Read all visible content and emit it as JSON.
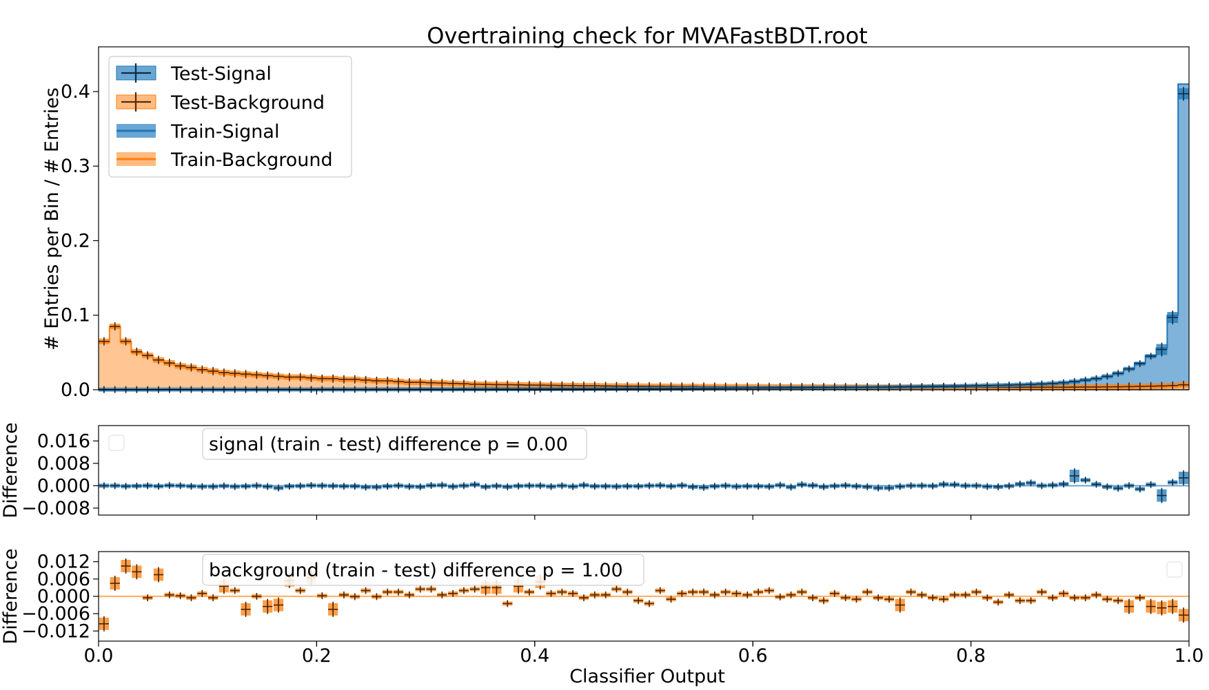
{
  "colors": {
    "signal": "#1f77b4",
    "signal_fill": "#6aa6d4",
    "background": "#ff7f0e",
    "background_fill": "#ffbb80",
    "errbar": "#222222"
  },
  "chart_data": [
    {
      "type": "histogram",
      "title": "Overtraining check for MVAFastBDT.root",
      "ylabel": "# Entries per Bin / # Entries",
      "xlim": [
        0.0,
        1.0
      ],
      "ylim": [
        0.0,
        0.46
      ],
      "yticks": [
        "0.0",
        "0.1",
        "0.2",
        "0.3",
        "0.4"
      ],
      "ytick_values": [
        0.0,
        0.1,
        0.2,
        0.3,
        0.4
      ],
      "bins": 100,
      "legend_position": "top-left",
      "legend": [
        "Test-Signal",
        "Test-Background",
        "Train-Signal",
        "Train-Background"
      ],
      "series": [
        {
          "name": "Train-Background",
          "values": [
            0.064,
            0.084,
            0.064,
            0.05,
            0.046,
            0.04,
            0.035,
            0.032,
            0.029,
            0.027,
            0.025,
            0.023,
            0.021,
            0.021,
            0.02,
            0.019,
            0.018,
            0.017,
            0.017,
            0.016,
            0.016,
            0.015,
            0.014,
            0.014,
            0.013,
            0.013,
            0.012,
            0.011,
            0.01,
            0.01,
            0.0095,
            0.009,
            0.0085,
            0.008,
            0.0075,
            0.0072,
            0.007,
            0.0068,
            0.0066,
            0.0064,
            0.0062,
            0.006,
            0.0058,
            0.0056,
            0.0055,
            0.0054,
            0.0052,
            0.005,
            0.0049,
            0.0048,
            0.0047,
            0.0046,
            0.0045,
            0.0044,
            0.0044,
            0.0043,
            0.0042,
            0.0041,
            0.0041,
            0.004,
            0.004,
            0.0039,
            0.0039,
            0.0038,
            0.0038,
            0.0037,
            0.0037,
            0.0036,
            0.0036,
            0.0035,
            0.0035,
            0.0035,
            0.0034,
            0.0034,
            0.0034,
            0.0033,
            0.0033,
            0.0033,
            0.0033,
            0.0032,
            0.0032,
            0.0032,
            0.0032,
            0.0032,
            0.0032,
            0.0033,
            0.0033,
            0.0034,
            0.0034,
            0.0035,
            0.0036,
            0.0037,
            0.0038,
            0.004,
            0.0042,
            0.0044,
            0.0047,
            0.005,
            0.0055,
            0.006
          ]
        },
        {
          "name": "Train-Signal",
          "values": [
            0.0002,
            0.0002,
            0.0002,
            0.0002,
            0.0002,
            0.0002,
            0.0003,
            0.0003,
            0.0003,
            0.0003,
            0.0003,
            0.0003,
            0.0003,
            0.0003,
            0.0004,
            0.0004,
            0.0004,
            0.0004,
            0.0004,
            0.0004,
            0.0005,
            0.0005,
            0.0005,
            0.0005,
            0.0005,
            0.0006,
            0.0006,
            0.0006,
            0.0006,
            0.0007,
            0.0007,
            0.0007,
            0.0007,
            0.0008,
            0.0008,
            0.0008,
            0.0009,
            0.0009,
            0.0009,
            0.001,
            0.001,
            0.001,
            0.0011,
            0.0011,
            0.0012,
            0.0012,
            0.0013,
            0.0013,
            0.0014,
            0.0014,
            0.0015,
            0.0015,
            0.0016,
            0.0016,
            0.0017,
            0.0018,
            0.0019,
            0.002,
            0.0021,
            0.0022,
            0.0023,
            0.0024,
            0.0025,
            0.0026,
            0.0027,
            0.0028,
            0.0029,
            0.003,
            0.0031,
            0.0032,
            0.0033,
            0.0035,
            0.0037,
            0.0039,
            0.0041,
            0.0043,
            0.0045,
            0.0047,
            0.0049,
            0.0051,
            0.0054,
            0.0057,
            0.006,
            0.0063,
            0.0067,
            0.0072,
            0.0078,
            0.0085,
            0.0095,
            0.011,
            0.013,
            0.015,
            0.018,
            0.022,
            0.028,
            0.036,
            0.046,
            0.056,
            0.1,
            0.41
          ]
        },
        {
          "name": "Test-Background",
          "values": [
            0.065,
            0.085,
            0.065,
            0.051,
            0.046,
            0.04,
            0.036,
            0.032,
            0.03,
            0.027,
            0.025,
            0.023,
            0.022,
            0.021,
            0.02,
            0.019,
            0.018,
            0.017,
            0.017,
            0.016,
            0.015,
            0.015,
            0.014,
            0.014,
            0.013,
            0.012,
            0.012,
            0.011,
            0.01,
            0.01,
            0.0094,
            0.009,
            0.0085,
            0.0081,
            0.0074,
            0.0072,
            0.0069,
            0.0069,
            0.0066,
            0.0063,
            0.0062,
            0.006,
            0.0058,
            0.0057,
            0.0054,
            0.0055,
            0.0051,
            0.005,
            0.0049,
            0.0048,
            0.0047,
            0.0046,
            0.0045,
            0.0043,
            0.0044,
            0.0042,
            0.0042,
            0.0041,
            0.004,
            0.004,
            0.004,
            0.0039,
            0.0038,
            0.0038,
            0.0037,
            0.0037,
            0.0036,
            0.0036,
            0.0036,
            0.0035,
            0.0035,
            0.0034,
            0.0034,
            0.0034,
            0.0034,
            0.0033,
            0.0033,
            0.0033,
            0.0032,
            0.0032,
            0.0032,
            0.0032,
            0.0032,
            0.0032,
            0.0032,
            0.0033,
            0.0033,
            0.0034,
            0.0034,
            0.0035,
            0.0036,
            0.0037,
            0.0038,
            0.004,
            0.0042,
            0.0044,
            0.0048,
            0.0051,
            0.0056,
            0.0066
          ]
        },
        {
          "name": "Test-Signal",
          "values": [
            0.0002,
            0.0002,
            0.0002,
            0.0002,
            0.0002,
            0.0002,
            0.0003,
            0.0003,
            0.0003,
            0.0003,
            0.0003,
            0.0003,
            0.0003,
            0.0003,
            0.0004,
            0.0004,
            0.0004,
            0.0004,
            0.0004,
            0.0004,
            0.0005,
            0.0005,
            0.0005,
            0.0005,
            0.0005,
            0.0006,
            0.0006,
            0.0006,
            0.0006,
            0.0007,
            0.0007,
            0.0007,
            0.0007,
            0.0008,
            0.0008,
            0.0008,
            0.0009,
            0.0009,
            0.0009,
            0.001,
            0.001,
            0.001,
            0.0011,
            0.0011,
            0.0012,
            0.0012,
            0.0013,
            0.0013,
            0.0014,
            0.0014,
            0.0015,
            0.0015,
            0.0016,
            0.0016,
            0.0017,
            0.0018,
            0.0019,
            0.002,
            0.0021,
            0.0022,
            0.0023,
            0.0024,
            0.0025,
            0.0026,
            0.0027,
            0.0028,
            0.0029,
            0.003,
            0.0031,
            0.0032,
            0.0033,
            0.0035,
            0.0037,
            0.0039,
            0.0041,
            0.0043,
            0.0045,
            0.0047,
            0.0049,
            0.0051,
            0.0054,
            0.0057,
            0.006,
            0.0063,
            0.0067,
            0.0072,
            0.0078,
            0.0085,
            0.0095,
            0.011,
            0.013,
            0.015,
            0.018,
            0.022,
            0.028,
            0.035,
            0.045,
            0.054,
            0.097,
            0.397
          ]
        }
      ]
    },
    {
      "type": "scatter",
      "ylabel": "Difference",
      "annotation": "signal (train - test) difference",
      "annotation_formula": "p = 0.00",
      "ylim": [
        -0.0105,
        0.0215
      ],
      "yticks": [
        "0.016",
        "0.008",
        "0.000",
        "−0.008"
      ],
      "ytick_values": [
        0.016,
        0.008,
        0.0,
        -0.008
      ],
      "series": [
        {
          "name": "signal difference",
          "values": [
            0.0,
            0.0,
            -0.0002,
            -0.0001,
            0.0,
            -0.0002,
            0.0001,
            0.0,
            -0.0002,
            -0.0003,
            -0.0003,
            -0.0001,
            -0.0003,
            -0.0002,
            0.0,
            -0.0003,
            -0.0008,
            -0.0002,
            -0.0001,
            0.0001,
            0.0,
            -0.0001,
            -0.0002,
            -0.0002,
            -0.0005,
            -0.0005,
            -0.0002,
            0.0,
            -0.0003,
            -0.0004,
            0.0001,
            0.0002,
            -0.0003,
            0.0,
            0.0004,
            -0.0004,
            -0.0001,
            -0.0004,
            -0.0001,
            0.0,
            0.0,
            -0.0003,
            0.0,
            -0.0003,
            0.0002,
            -0.0002,
            -0.0002,
            -0.0003,
            -0.0002,
            -0.0002,
            0.0,
            0.0001,
            -0.0002,
            0.0001,
            -0.0004,
            -0.0006,
            -0.0002,
            0.0,
            -0.0003,
            -0.0002,
            -0.0002,
            -0.0003,
            0.0002,
            -0.0005,
            0.0004,
            0.0001,
            -0.0004,
            -0.0001,
            0.0001,
            -0.0002,
            -0.0004,
            -0.0008,
            -0.0008,
            -0.0003,
            0.0,
            0.0,
            -0.0001,
            0.0005,
            0.0004,
            0.0,
            0.0,
            -0.0003,
            -0.0004,
            -0.0001,
            0.0006,
            0.001,
            0.0,
            0.0002,
            0.0006,
            0.0035,
            0.002,
            0.0005,
            -0.0004,
            -0.0009,
            0.0,
            -0.0012,
            0.0004,
            -0.0035,
            0.0012,
            0.0028
          ]
        }
      ]
    },
    {
      "type": "scatter",
      "ylabel": "Difference",
      "xlabel": "Classifier Output",
      "annotation": "background (train - test) difference",
      "annotation_formula": "p = 1.00",
      "ylim": [
        -0.0155,
        0.0155
      ],
      "yticks": [
        "0.012",
        "0.006",
        "0.000",
        "−0.006",
        "−0.012"
      ],
      "ytick_values": [
        0.012,
        0.006,
        0.0,
        -0.006,
        -0.012
      ],
      "xticks": [
        "0.0",
        "0.2",
        "0.4",
        "0.6",
        "0.8",
        "1.0"
      ],
      "xtick_values": [
        0.0,
        0.2,
        0.4,
        0.6,
        0.8,
        1.0
      ],
      "series": [
        {
          "name": "background difference",
          "values": [
            -0.0095,
            0.0045,
            0.0105,
            0.0085,
            -0.0005,
            0.0075,
            0.0005,
            0.0002,
            -0.0005,
            0.001,
            -0.0005,
            0.0035,
            0.002,
            -0.0045,
            0.0,
            -0.0035,
            -0.003,
            0.0055,
            0.002,
            0.0065,
            0.0002,
            -0.0045,
            0.0005,
            -0.0001,
            0.002,
            -0.0001,
            0.0015,
            0.0015,
            0.0005,
            0.0025,
            0.0025,
            0.0005,
            0.001,
            0.002,
            0.0025,
            0.003,
            0.003,
            -0.0025,
            0.0035,
            0.0015,
            0.005,
            0.001,
            0.0015,
            0.001,
            -0.0005,
            0.0005,
            0.0005,
            0.0025,
            0.0015,
            -0.0015,
            -0.0025,
            0.002,
            -0.001,
            0.001,
            0.0015,
            0.0015,
            0.0005,
            0.0015,
            0.001,
            0.0005,
            0.0015,
            0.002,
            -0.0002,
            0.0005,
            0.0015,
            -0.0005,
            -0.0015,
            0.001,
            -0.0005,
            -0.001,
            0.0015,
            -0.0005,
            -0.001,
            -0.003,
            0.0015,
            0.0005,
            -0.0005,
            -0.001,
            0.0005,
            0.0005,
            0.0015,
            -0.0005,
            -0.002,
            0.0005,
            -0.0015,
            -0.0015,
            0.0015,
            -0.0005,
            0.001,
            -0.0005,
            -0.0005,
            0.0005,
            -0.001,
            -0.0015,
            -0.0035,
            -0.0005,
            -0.0035,
            -0.004,
            -0.0035,
            -0.0065
          ]
        }
      ]
    }
  ]
}
